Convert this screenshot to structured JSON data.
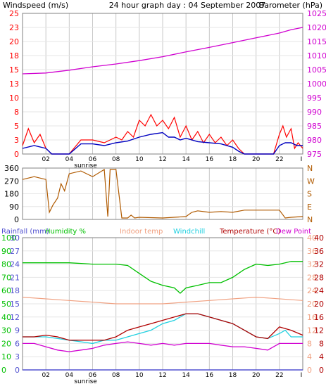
{
  "header": {
    "left_title": "Windspeed (m/s)",
    "center_title": "24 hour graph day : 04 September 2007",
    "right_title": "Barometer (hPa)"
  },
  "colors": {
    "windspeed": "#ff0000",
    "windavg": "#0000c0",
    "barometer": "#d000d0",
    "direction": "#b05a00",
    "rainfall": "#5050d0",
    "humidity": "#00c000",
    "indoor": "#f0a080",
    "windchill": "#20d0e0",
    "temperature": "#b00000",
    "dewpoint": "#d000d0",
    "grid": "#c8c8c8",
    "frame": "#808080"
  },
  "shared": {
    "hour_ticks": [
      "02",
      "04",
      "06",
      "08",
      "10",
      "12",
      "14",
      "16",
      "18",
      "20",
      "22",
      "I"
    ],
    "sunrise_label": "sunrise"
  },
  "chart_data": [
    {
      "type": "line",
      "title": "24 hour graph day : 04 September 2007",
      "ylabel": "Windspeed (m/s)",
      "y2label": "Barometer (hPa)",
      "ylim": [
        0,
        25
      ],
      "y2lim": [
        975,
        1025
      ],
      "yticks": [
        "25",
        "23",
        "20",
        "18",
        "15",
        "13",
        "10",
        "8",
        "5",
        "3",
        "0"
      ],
      "y2ticks": [
        "1025",
        "1020",
        "1015",
        "1010",
        "1005",
        "1000",
        "995",
        "990",
        "985",
        "980",
        "975"
      ],
      "series": [
        {
          "name": "Windspeed (m/s)",
          "x": [
            0,
            0.5,
            1,
            1.5,
            2,
            2.5,
            3,
            3.5,
            4,
            5,
            6,
            7,
            8,
            8.5,
            9,
            9.5,
            10,
            10.5,
            11,
            11.5,
            12,
            12.5,
            13,
            13.5,
            14,
            14.5,
            15,
            15.5,
            16,
            16.5,
            17,
            17.5,
            18,
            18.5,
            19,
            20,
            21,
            21.5,
            22,
            22.3,
            22.6,
            23,
            23.3,
            23.6,
            24
          ],
          "values": [
            1.5,
            4.5,
            2,
            3.5,
            1,
            0,
            0,
            0,
            0,
            2.5,
            2.5,
            2,
            3,
            2.5,
            4,
            3,
            6,
            5,
            7,
            5,
            6,
            4.5,
            6.5,
            3,
            5,
            2.5,
            4,
            2,
            3.5,
            2,
            3,
            1.5,
            2.5,
            1,
            0,
            0,
            0,
            0,
            3.5,
            5,
            3,
            4.5,
            1,
            2,
            1
          ]
        },
        {
          "name": "",
          "x": [
            0,
            1,
            2,
            2.5,
            3,
            4,
            5,
            6,
            7,
            8,
            9,
            10,
            11,
            12,
            12.5,
            13,
            13.5,
            14,
            15,
            16,
            17,
            18,
            18.5,
            19,
            20,
            21,
            21.5,
            22,
            22.5,
            23,
            23.5,
            24
          ],
          "values": [
            1,
            1.5,
            1,
            0,
            0,
            0,
            1.8,
            1.8,
            1.5,
            2,
            2.3,
            3,
            3.5,
            3.8,
            3,
            3,
            2.5,
            2.8,
            2.2,
            2,
            1.8,
            1.2,
            0.5,
            0,
            0,
            0,
            0,
            1.5,
            2,
            2,
            1.5,
            1.5
          ]
        },
        {
          "name": "Barometer (hPa)",
          "x": [
            0,
            2,
            4,
            6,
            8,
            10,
            12,
            14,
            16,
            18,
            20,
            22,
            23,
            24
          ],
          "values": [
            1003.5,
            1003.8,
            1004.8,
            1006.0,
            1007.0,
            1008.2,
            1009.6,
            1011.3,
            1012.9,
            1014.6,
            1016.3,
            1018.0,
            1019.2,
            1020.0
          ]
        }
      ]
    },
    {
      "type": "line",
      "ylabel": "",
      "ylim": [
        0,
        360
      ],
      "yticks": [
        "360",
        "270",
        "180",
        "90",
        "0"
      ],
      "y2ticks": [
        "N",
        "W",
        "S",
        "E",
        "N"
      ],
      "series": [
        {
          "name": "",
          "x": [
            0,
            1,
            2,
            2.3,
            2.6,
            3,
            3.3,
            3.6,
            4,
            5,
            6,
            7,
            7.3,
            7.5,
            8,
            8.5,
            9,
            9.3,
            9.6,
            10,
            12,
            14,
            14.5,
            15,
            16,
            17,
            18,
            19,
            20,
            21,
            22,
            22.5,
            23,
            24
          ],
          "values": [
            280,
            300,
            280,
            50,
            100,
            150,
            250,
            200,
            320,
            340,
            300,
            350,
            20,
            350,
            350,
            10,
            10,
            30,
            10,
            15,
            10,
            20,
            50,
            60,
            50,
            55,
            50,
            65,
            65,
            65,
            65,
            10,
            15,
            20
          ]
        }
      ]
    },
    {
      "type": "line",
      "labels": [
        "Rainfall (mm)",
        "Humidity %",
        "Indoor temp",
        "Windchill",
        "Temperature (°C)",
        "Dew Point"
      ],
      "ylim_humidity": [
        0,
        100
      ],
      "ylim_temperature": [
        0,
        40
      ],
      "ylim_rain": [
        0,
        30
      ],
      "yticks_humidity": [
        "100",
        "90",
        "80",
        "70",
        "60",
        "50",
        "40",
        "30",
        "20",
        "10",
        "0"
      ],
      "yticks_rain": [
        "30",
        "27",
        "24",
        "21",
        "18",
        "15",
        "12",
        "9",
        "6",
        "3",
        "0"
      ],
      "yticks_temp_left": [
        "40",
        "36",
        "32",
        "28",
        "24",
        "20",
        "16",
        "12",
        "8",
        "4",
        "0"
      ],
      "yticks_temp_right": [
        "40",
        "36",
        "32",
        "28",
        "24",
        "20",
        "16",
        "12",
        "8",
        "4",
        "0"
      ],
      "series": [
        {
          "name": "Humidity %",
          "x": [
            0,
            2,
            4,
            6,
            7,
            8,
            9,
            10,
            11,
            12,
            13,
            13.5,
            14,
            15,
            16,
            17,
            18,
            19,
            20,
            21,
            22,
            23,
            24
          ],
          "values": [
            81,
            81,
            81,
            80,
            80,
            80,
            79,
            73,
            67,
            64,
            62,
            58,
            62,
            64,
            66,
            66,
            70,
            76,
            80,
            79,
            80,
            82,
            82
          ]
        },
        {
          "name": "Indoor temp",
          "x": [
            0,
            4,
            8,
            12,
            16,
            20,
            24
          ],
          "values": [
            22,
            21,
            20,
            20,
            21,
            22,
            21
          ]
        },
        {
          "name": "Temperature (°C)",
          "x": [
            0,
            1,
            2,
            3,
            4,
            5,
            6,
            7,
            8,
            9,
            10,
            11,
            12,
            13,
            14,
            15,
            16,
            17,
            18,
            19,
            20,
            21,
            22,
            22.5,
            23,
            24
          ],
          "values": [
            10,
            10,
            10.5,
            10,
            9,
            9,
            9,
            9,
            10,
            12,
            13,
            14,
            15,
            16,
            17,
            17,
            16,
            15,
            14,
            12,
            10,
            9.5,
            13,
            12.5,
            12,
            10.5
          ]
        },
        {
          "name": "Windchill",
          "x": [
            0,
            2,
            4,
            6,
            7,
            8,
            9,
            10,
            11,
            12,
            13,
            14,
            15,
            16,
            17,
            18,
            19,
            20,
            21,
            22,
            22.5,
            23,
            24
          ],
          "values": [
            10,
            10,
            9,
            8,
            9,
            9,
            10,
            11,
            12,
            14,
            15,
            17,
            17,
            16,
            15,
            14,
            12,
            10,
            9.5,
            11,
            12,
            10,
            10
          ]
        },
        {
          "name": "Dew Point",
          "x": [
            0,
            1,
            2,
            3,
            4,
            5,
            6,
            7,
            8,
            9,
            10,
            11,
            12,
            13,
            14,
            15,
            16,
            17,
            18,
            19,
            20,
            21,
            22,
            23,
            24
          ],
          "values": [
            8,
            8,
            7,
            6,
            5.5,
            6,
            6.5,
            7.5,
            8,
            8.5,
            8,
            7.5,
            8,
            7.5,
            8,
            8,
            8,
            7.5,
            7,
            7,
            6.5,
            6,
            8,
            8,
            8
          ]
        },
        {
          "name": "Rainfall (mm)",
          "x": [
            0,
            24
          ],
          "values": [
            0,
            0
          ]
        }
      ]
    }
  ]
}
